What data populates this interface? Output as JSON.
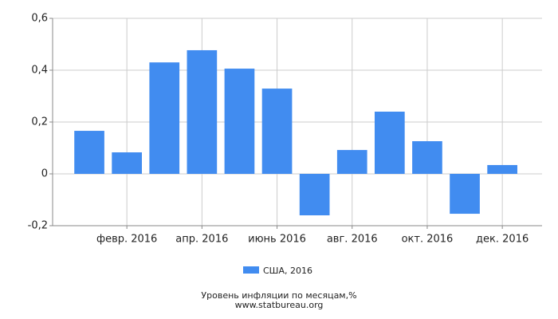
{
  "chart_data": {
    "type": "bar",
    "title": "Уровень инфляции по месяцам,%",
    "subtitle": "www.statbureau.org",
    "categories": [
      null,
      "февр. 2016",
      null,
      "апр. 2016",
      null,
      "июнь 2016",
      null,
      "авг. 2016",
      null,
      "окт. 2016",
      null,
      "дек. 2016"
    ],
    "series": [
      {
        "name": "США, 2016",
        "color": "#418cf0",
        "values": [
          0.166,
          0.083,
          0.43,
          0.477,
          0.406,
          0.329,
          -0.16,
          0.092,
          0.24,
          0.126,
          -0.154,
          0.034
        ]
      }
    ],
    "ylim": [
      -0.2,
      0.6
    ],
    "yticks": [
      {
        "value": -0.2,
        "label": "-0,2"
      },
      0,
      {
        "value": 0.2,
        "label": "0,2"
      },
      {
        "value": 0.4,
        "label": "0,4"
      },
      {
        "value": 0.6,
        "label": "0,6"
      }
    ],
    "grid": true
  }
}
